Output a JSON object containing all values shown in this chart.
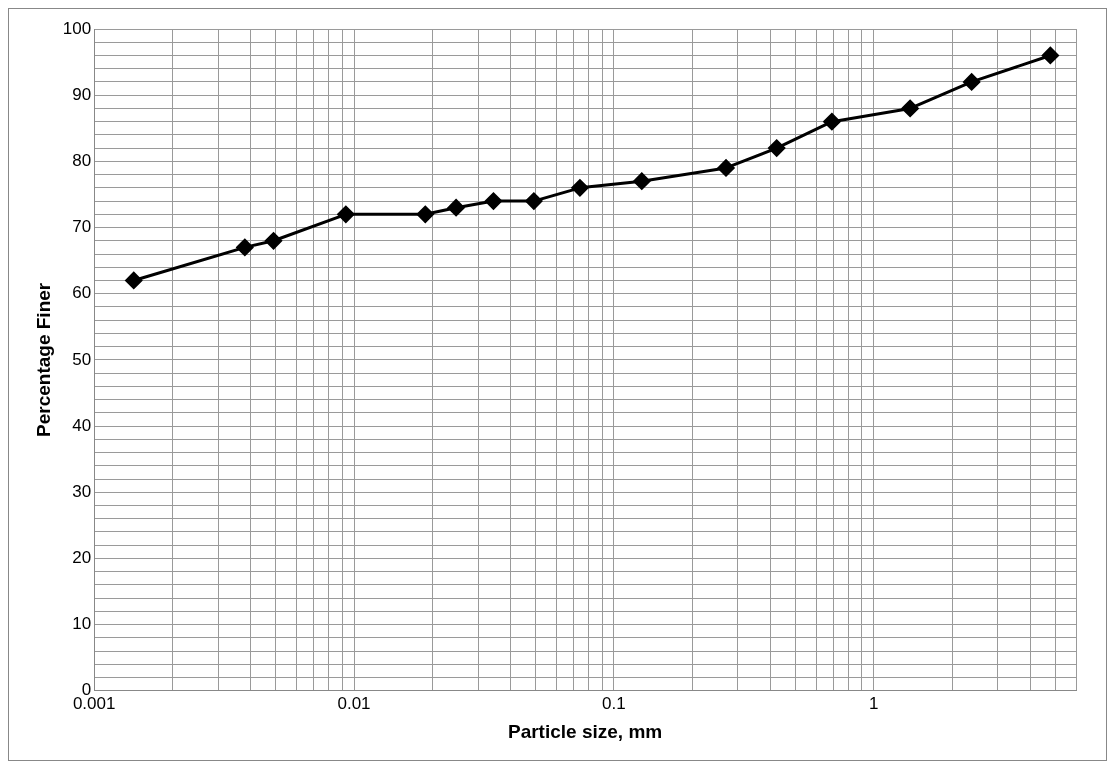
{
  "chart_data": {
    "type": "line",
    "xlabel": "Particle size, mm",
    "ylabel": "Percentage Finer",
    "log": "x",
    "grid": true,
    "legend": false,
    "marker": "diamond",
    "line_style": "solid",
    "x": [
      0.00142,
      0.0038,
      0.0049,
      0.0093,
      0.0188,
      0.0247,
      0.0344,
      0.0492,
      0.074,
      0.128,
      0.27,
      0.423,
      0.69,
      1.38,
      2.38,
      4.78
    ],
    "series": [
      {
        "color": "#000000",
        "values": [
          62,
          67,
          68,
          72,
          72,
          73,
          74,
          74,
          76,
          77,
          79,
          82,
          86,
          88,
          92,
          96
        ]
      }
    ],
    "xlim": [
      0.001,
      6
    ],
    "xticks": [
      0.001,
      {
        "value": 0.002,
        "label": null
      },
      {
        "value": 0.003,
        "label": null
      },
      {
        "value": 0.004,
        "label": null
      },
      {
        "value": 0.005,
        "label": null
      },
      {
        "value": 0.006,
        "label": null
      },
      {
        "value": 0.007,
        "label": null
      },
      {
        "value": 0.008,
        "label": null
      },
      {
        "value": 0.009,
        "label": null
      },
      0.01,
      {
        "value": 0.02,
        "label": null
      },
      {
        "value": 0.03,
        "label": null
      },
      {
        "value": 0.04,
        "label": null
      },
      {
        "value": 0.05,
        "label": null
      },
      {
        "value": 0.06,
        "label": null
      },
      {
        "value": 0.07,
        "label": null
      },
      {
        "value": 0.08,
        "label": null
      },
      {
        "value": 0.09,
        "label": null
      },
      0.1,
      {
        "value": 0.2,
        "label": null
      },
      {
        "value": 0.3,
        "label": null
      },
      {
        "value": 0.4,
        "label": null
      },
      {
        "value": 0.5,
        "label": null
      },
      {
        "value": 0.6,
        "label": null
      },
      {
        "value": 0.7,
        "label": null
      },
      {
        "value": 0.8,
        "label": null
      },
      {
        "value": 0.9,
        "label": null
      },
      1,
      {
        "value": 2,
        "label": null
      },
      {
        "value": 3,
        "label": null
      },
      {
        "value": 4,
        "label": null
      },
      {
        "value": 5,
        "label": null
      },
      {
        "value": 6,
        "label": null
      }
    ],
    "ylim": [
      0,
      100
    ],
    "yticks": [
      0,
      {
        "value": 2,
        "label": null
      },
      {
        "value": 4,
        "label": null
      },
      {
        "value": 6,
        "label": null
      },
      {
        "value": 8,
        "label": null
      },
      10,
      {
        "value": 12,
        "label": null
      },
      {
        "value": 14,
        "label": null
      },
      {
        "value": 16,
        "label": null
      },
      {
        "value": 18,
        "label": null
      },
      20,
      {
        "value": 22,
        "label": null
      },
      {
        "value": 24,
        "label": null
      },
      {
        "value": 26,
        "label": null
      },
      {
        "value": 28,
        "label": null
      },
      30,
      {
        "value": 32,
        "label": null
      },
      {
        "value": 34,
        "label": null
      },
      {
        "value": 36,
        "label": null
      },
      {
        "value": 38,
        "label": null
      },
      40,
      {
        "value": 42,
        "label": null
      },
      {
        "value": 44,
        "label": null
      },
      {
        "value": 46,
        "label": null
      },
      {
        "value": 48,
        "label": null
      },
      50,
      {
        "value": 52,
        "label": null
      },
      {
        "value": 54,
        "label": null
      },
      {
        "value": 56,
        "label": null
      },
      {
        "value": 58,
        "label": null
      },
      60,
      {
        "value": 62,
        "label": null
      },
      {
        "value": 64,
        "label": null
      },
      {
        "value": 66,
        "label": null
      },
      {
        "value": 68,
        "label": null
      },
      70,
      {
        "value": 72,
        "label": null
      },
      {
        "value": 74,
        "label": null
      },
      {
        "value": 76,
        "label": null
      },
      {
        "value": 78,
        "label": null
      },
      80,
      {
        "value": 82,
        "label": null
      },
      {
        "value": 84,
        "label": null
      },
      {
        "value": 86,
        "label": null
      },
      {
        "value": 88,
        "label": null
      },
      90,
      {
        "value": 92,
        "label": null
      },
      {
        "value": 94,
        "label": null
      },
      {
        "value": 96,
        "label": null
      },
      {
        "value": 98,
        "label": null
      },
      100
    ]
  }
}
